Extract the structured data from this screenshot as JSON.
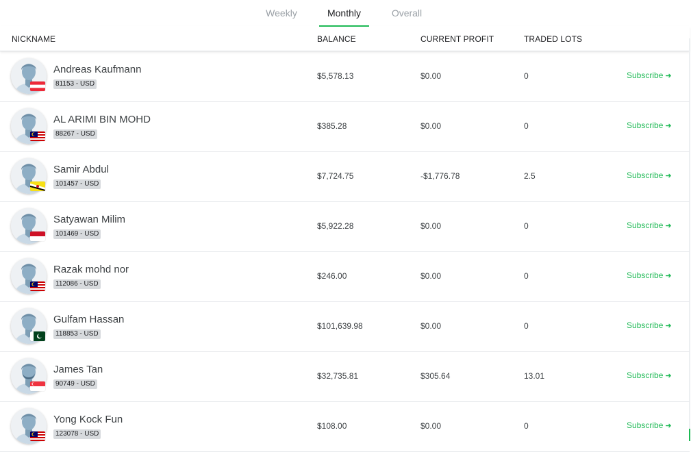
{
  "tabs": [
    {
      "label": "Weekly",
      "active": false
    },
    {
      "label": "Monthly",
      "active": true
    },
    {
      "label": "Overall",
      "active": false
    }
  ],
  "columns": {
    "nickname": "NICKNAME",
    "balance": "BALANCE",
    "profit": "CURRENT PROFIT",
    "lots": "TRADED LOTS"
  },
  "colors": {
    "accent": "#1db954"
  },
  "rows": [
    {
      "name": "Andreas Kaufmann",
      "account": "81153 - USD",
      "flag": "austria-flag-icon",
      "balance": "$5,578.13",
      "profit": "$0.00",
      "lots": "0",
      "action": "Subscribe",
      "beard": false
    },
    {
      "name": "AL ARIMI BIN MOHD",
      "account": "88267 - USD",
      "flag": "malaysia-flag-icon",
      "balance": "$385.28",
      "profit": "$0.00",
      "lots": "0",
      "action": "Subscribe",
      "beard": false
    },
    {
      "name": "Samir Abdul",
      "account": "101457 - USD",
      "flag": "brunei-flag-icon",
      "balance": "$7,724.75",
      "profit": "-$1,776.78",
      "lots": "2.5",
      "action": "Subscribe",
      "beard": false
    },
    {
      "name": "Satyawan Milim",
      "account": "101469 - USD",
      "flag": "indonesia-flag-icon",
      "balance": "$5,922.28",
      "profit": "$0.00",
      "lots": "0",
      "action": "Subscribe",
      "beard": false
    },
    {
      "name": "Razak mohd nor",
      "account": "112086 - USD",
      "flag": "malaysia-flag-icon",
      "balance": "$246.00",
      "profit": "$0.00",
      "lots": "0",
      "action": "Subscribe",
      "beard": false
    },
    {
      "name": "Gulfam Hassan",
      "account": "118853 - USD",
      "flag": "pakistan-flag-icon",
      "balance": "$101,639.98",
      "profit": "$0.00",
      "lots": "0",
      "action": "Subscribe",
      "beard": false
    },
    {
      "name": "James Tan",
      "account": "90749 - USD",
      "flag": "singapore-flag-icon",
      "balance": "$32,735.81",
      "profit": "$305.64",
      "lots": "13.01",
      "action": "Subscribe",
      "beard": true
    },
    {
      "name": "Yong Kock Fun",
      "account": "123078 - USD",
      "flag": "malaysia-flag-icon",
      "balance": "$108.00",
      "profit": "$0.00",
      "lots": "0",
      "action": "Subscribe",
      "beard": false
    }
  ]
}
